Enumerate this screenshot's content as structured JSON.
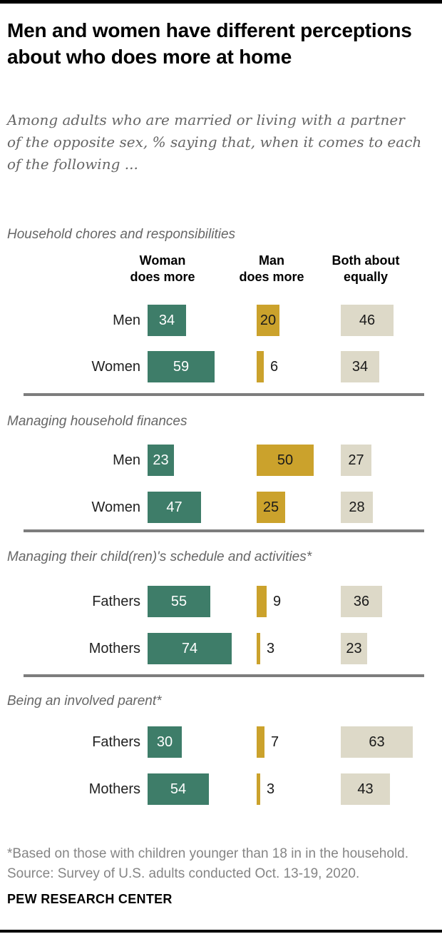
{
  "header": {
    "title": "Men and women have different perceptions about who does more at home",
    "subtitle": "Among adults who are married or living with a partner of the opposite sex, % saying that, when it comes to each of the following ..."
  },
  "chart_data": {
    "type": "bar",
    "orientation": "horizontal",
    "unit": "%",
    "columns": [
      {
        "key": "woman-does-more",
        "label": "Woman does more",
        "label_lines": [
          "Woman",
          "does more"
        ],
        "color": "#3E7D69"
      },
      {
        "key": "man-does-more",
        "label": "Man does more",
        "label_lines": [
          "Man",
          "does more"
        ],
        "color": "#CBA22C"
      },
      {
        "key": "both-about-equally",
        "label": "Both about equally",
        "label_lines": [
          "Both about",
          "equally"
        ],
        "color": "#DDD9C8"
      }
    ],
    "sections": [
      {
        "heading": "Household chores and responsibilities",
        "rows": [
          {
            "label": "Men",
            "values": [
              34,
              20,
              46
            ]
          },
          {
            "label": "Women",
            "values": [
              59,
              6,
              34
            ]
          }
        ]
      },
      {
        "heading": "Managing household finances",
        "rows": [
          {
            "label": "Men",
            "values": [
              23,
              50,
              27
            ]
          },
          {
            "label": "Women",
            "values": [
              47,
              25,
              28
            ]
          }
        ]
      },
      {
        "heading": "Managing their child(ren)'s schedule and activities*",
        "rows": [
          {
            "label": "Fathers",
            "values": [
              55,
              9,
              36
            ]
          },
          {
            "label": "Mothers",
            "values": [
              74,
              3,
              23
            ]
          }
        ]
      },
      {
        "heading": "Being an involved parent*",
        "rows": [
          {
            "label": "Fathers",
            "values": [
              30,
              7,
              63
            ]
          },
          {
            "label": "Mothers",
            "values": [
              54,
              3,
              43
            ]
          }
        ]
      }
    ]
  },
  "footer": {
    "lines": [
      "*Based on those with children younger than 18 in in the household.",
      "Source: Survey of U.S. adults conducted Oct. 13-19, 2020."
    ],
    "brand": "PEW RESEARCH CENTER"
  }
}
